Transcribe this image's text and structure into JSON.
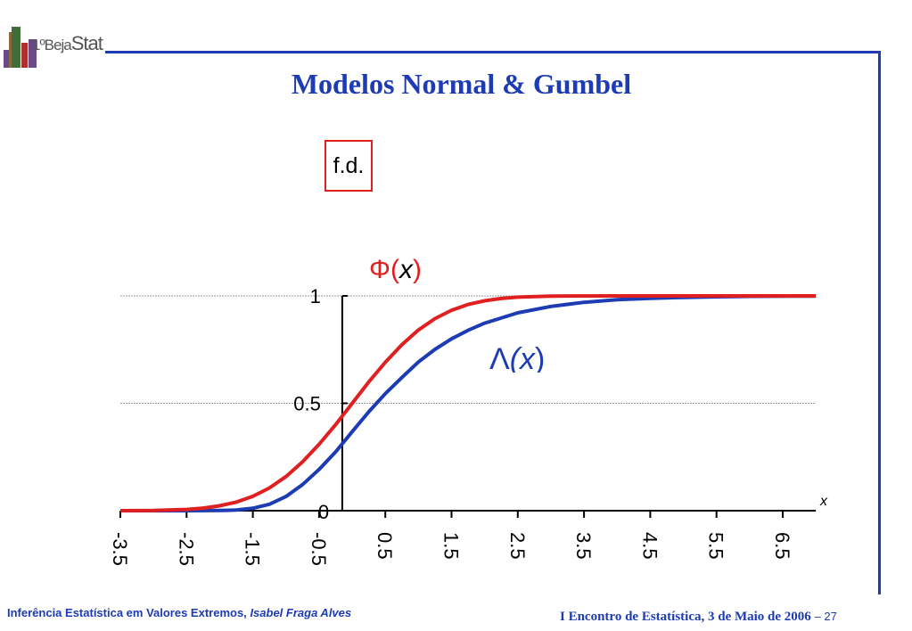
{
  "header": {
    "logo_prefix": "1º",
    "logo_text_a": "Beja",
    "logo_text_b": "Stat",
    "title": "Modelos Normal & Gumbel"
  },
  "labels": {
    "fd": "f.d.",
    "phi_symbol": "Φ",
    "phi_open": "(",
    "phi_var": "x",
    "phi_close": ")",
    "lambda_symbol": "Λ",
    "lambda_open": "(",
    "lambda_var": "x",
    "lambda_close": ")"
  },
  "colors": {
    "accent": "#1d3bb3",
    "normal": "#e02020",
    "gumbel": "#1d3bb3"
  },
  "footer": {
    "course": "Inferência Estatística em Valores Extremos,",
    "author": "Isabel Fraga Alves",
    "event": "I Encontro de Estatística, 3 de Maio de 2006",
    "page": "– 27"
  },
  "chart_data": {
    "type": "line",
    "title": "",
    "xlabel": "x",
    "ylabel": "",
    "xlim": [
      -3.5,
      7.0
    ],
    "ylim": [
      0,
      1
    ],
    "x_ticks": [
      -3.5,
      -2.5,
      -1.5,
      -0.5,
      0.5,
      1.5,
      2.5,
      3.5,
      4.5,
      5.5,
      6.5
    ],
    "x_tick_labels": [
      "-3.5",
      "-2.5",
      "-1.5",
      "-0.5",
      "0.5",
      "1.5",
      "2.5",
      "3.5",
      "4.5",
      "5.5",
      "6.5"
    ],
    "y_ticks": [
      0,
      0.5,
      1
    ],
    "y_tick_labels": [
      "0",
      "0.5",
      "1"
    ],
    "grid": "horizontal dashed at 0.5 and 1",
    "series": [
      {
        "name": "Φ(x)",
        "color": "#e02020",
        "x": [
          -3.5,
          -3.0,
          -2.5,
          -2.25,
          -2.0,
          -1.75,
          -1.5,
          -1.25,
          -1.0,
          -0.75,
          -0.5,
          -0.25,
          0,
          0.25,
          0.5,
          0.75,
          1.0,
          1.25,
          1.5,
          1.75,
          2.0,
          2.25,
          2.5,
          3.0,
          4.0,
          5.0,
          6.0,
          7.0
        ],
        "y": [
          0.0002,
          0.001,
          0.006,
          0.012,
          0.023,
          0.04,
          0.067,
          0.106,
          0.159,
          0.227,
          0.309,
          0.401,
          0.5,
          0.599,
          0.691,
          0.773,
          0.841,
          0.894,
          0.933,
          0.96,
          0.977,
          0.988,
          0.994,
          0.999,
          1,
          1,
          1,
          1
        ]
      },
      {
        "name": "Λ(x)",
        "color": "#1d3bb3",
        "x": [
          -3.5,
          -2.5,
          -2.0,
          -1.75,
          -1.5,
          -1.25,
          -1.0,
          -0.75,
          -0.5,
          -0.25,
          0,
          0.25,
          0.5,
          0.75,
          1.0,
          1.25,
          1.5,
          1.75,
          2.0,
          2.5,
          3.0,
          3.5,
          4.0,
          4.5,
          5.0,
          5.5,
          6.0,
          7.0
        ],
        "y": [
          0,
          0,
          0.001,
          0.003,
          0.011,
          0.03,
          0.066,
          0.121,
          0.192,
          0.274,
          0.368,
          0.46,
          0.545,
          0.62,
          0.692,
          0.751,
          0.8,
          0.84,
          0.873,
          0.921,
          0.951,
          0.97,
          0.982,
          0.989,
          0.993,
          0.996,
          0.998,
          0.999
        ]
      }
    ]
  }
}
